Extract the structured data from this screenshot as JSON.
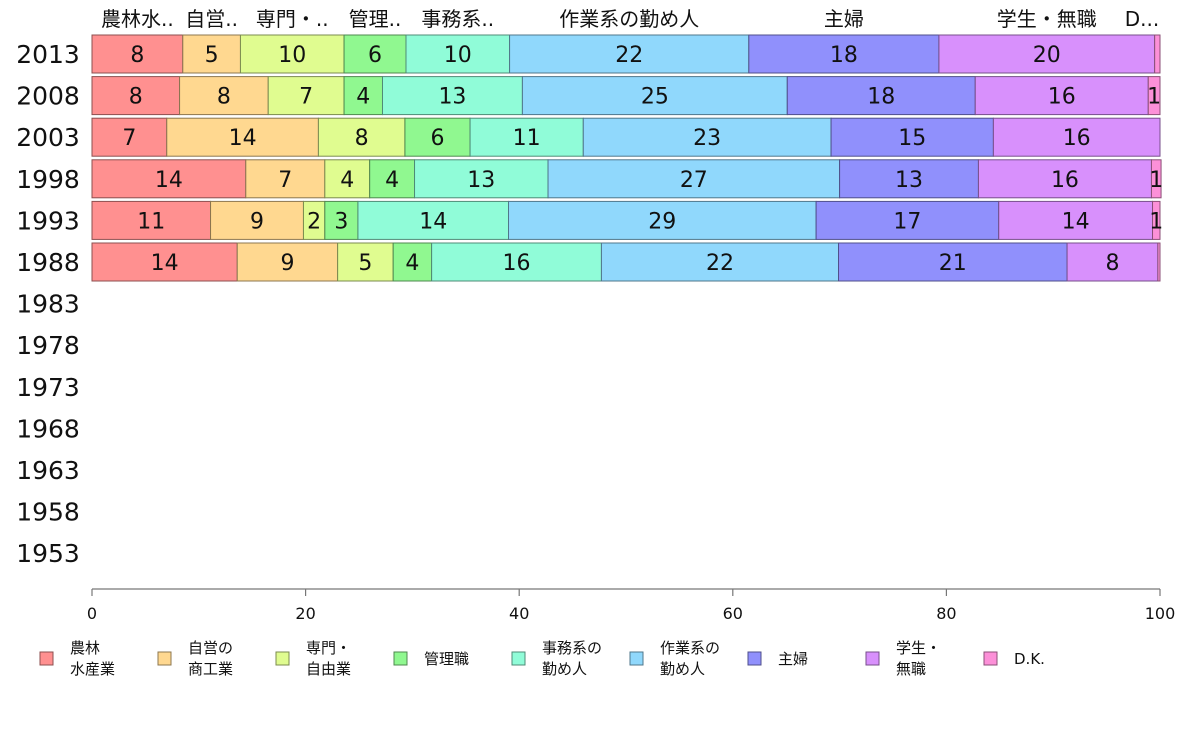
{
  "chart_data": {
    "type": "bar",
    "orientation": "horizontal",
    "stacked": true,
    "title": "",
    "xlabel": "",
    "ylabel": "",
    "xlim": [
      0,
      100
    ],
    "x_ticks": [
      0,
      20,
      40,
      60,
      80,
      100
    ],
    "grid": false,
    "legend_position": "bottom",
    "categories": [
      "2013",
      "2008",
      "2003",
      "1998",
      "1993",
      "1988",
      "1983",
      "1978",
      "1973",
      "1968",
      "1963",
      "1958",
      "1953"
    ],
    "top_labels": [
      "農林水..",
      "自営..",
      "専門・..",
      "管理..",
      "事務系..",
      "作業系の勤め人",
      "主婦",
      "学生・無職",
      "D..."
    ],
    "series": [
      {
        "name": "農林水産業",
        "legend_lines": [
          "農林",
          "水産業"
        ],
        "color": "#ff9090",
        "values": [
          8.5,
          8.2,
          7.0,
          14.4,
          11.1,
          13.6,
          null,
          null,
          null,
          null,
          null,
          null,
          null
        ],
        "labels": [
          "8",
          "8",
          "7",
          "14",
          "11",
          "14",
          "",
          "",
          "",
          "",
          "",
          "",
          ""
        ]
      },
      {
        "name": "自営の商工業",
        "legend_lines": [
          "自営の",
          "商工業"
        ],
        "color": "#ffd890",
        "values": [
          5.4,
          8.3,
          14.2,
          7.4,
          8.7,
          9.4,
          null,
          null,
          null,
          null,
          null,
          null,
          null
        ],
        "labels": [
          "5",
          "8",
          "14",
          "7",
          "9",
          "9",
          "",
          "",
          "",
          "",
          "",
          "",
          ""
        ]
      },
      {
        "name": "専門・自由業",
        "legend_lines": [
          "専門・",
          "自由業"
        ],
        "color": "#e0fc90",
        "values": [
          9.7,
          7.1,
          8.1,
          4.2,
          2.0,
          5.2,
          null,
          null,
          null,
          null,
          null,
          null,
          null
        ],
        "labels": [
          "10",
          "7",
          "8",
          "4",
          "2",
          "5",
          "",
          "",
          "",
          "",
          "",
          "",
          ""
        ]
      },
      {
        "name": "管理職",
        "legend_lines": [
          "管理職"
        ],
        "color": "#90f890",
        "values": [
          5.8,
          3.6,
          6.1,
          4.2,
          3.1,
          3.6,
          null,
          null,
          null,
          null,
          null,
          null,
          null
        ],
        "labels": [
          "6",
          "4",
          "6",
          "4",
          "3",
          "4",
          "",
          "",
          "",
          "",
          "",
          "",
          ""
        ]
      },
      {
        "name": "事務系の勤め人",
        "legend_lines": [
          "事務系の",
          "勤め人"
        ],
        "color": "#90fcd8",
        "values": [
          9.7,
          13.1,
          10.6,
          12.5,
          14.1,
          15.9,
          null,
          null,
          null,
          null,
          null,
          null,
          null
        ],
        "labels": [
          "10",
          "13",
          "11",
          "13",
          "14",
          "16",
          "",
          "",
          "",
          "",
          "",
          "",
          ""
        ]
      },
      {
        "name": "作業系の勤め人",
        "legend_lines": [
          "作業系の",
          "勤め人"
        ],
        "color": "#90d8fc",
        "values": [
          22.4,
          24.8,
          23.2,
          27.3,
          28.8,
          22.2,
          null,
          null,
          null,
          null,
          null,
          null,
          null
        ],
        "labels": [
          "22",
          "25",
          "23",
          "27",
          "29",
          "22",
          "",
          "",
          "",
          "",
          "",
          "",
          ""
        ]
      },
      {
        "name": "主婦",
        "legend_lines": [
          "主婦"
        ],
        "color": "#9090fc",
        "values": [
          17.8,
          17.6,
          15.2,
          13.0,
          17.1,
          21.4,
          null,
          null,
          null,
          null,
          null,
          null,
          null
        ],
        "labels": [
          "18",
          "18",
          "15",
          "13",
          "17",
          "21",
          "",
          "",
          "",
          "",
          "",
          "",
          ""
        ]
      },
      {
        "name": "学生・無職",
        "legend_lines": [
          "学生・",
          "無職"
        ],
        "color": "#d890fc",
        "values": [
          20.2,
          16.2,
          15.6,
          16.2,
          14.4,
          8.5,
          null,
          null,
          null,
          null,
          null,
          null,
          null
        ],
        "labels": [
          "20",
          "16",
          "16",
          "16",
          "14",
          "8",
          "",
          "",
          "",
          "",
          "",
          "",
          ""
        ]
      },
      {
        "name": "D.K.",
        "legend_lines": [
          "D.K."
        ],
        "color": "#fc90d8",
        "values": [
          0.5,
          1.1,
          0.0,
          0.9,
          0.7,
          0.2,
          null,
          null,
          null,
          null,
          null,
          null,
          null
        ],
        "labels": [
          "",
          "1",
          "",
          "1",
          "1",
          "",
          "",
          "",
          "",
          "",
          "",
          "",
          ""
        ]
      }
    ]
  }
}
